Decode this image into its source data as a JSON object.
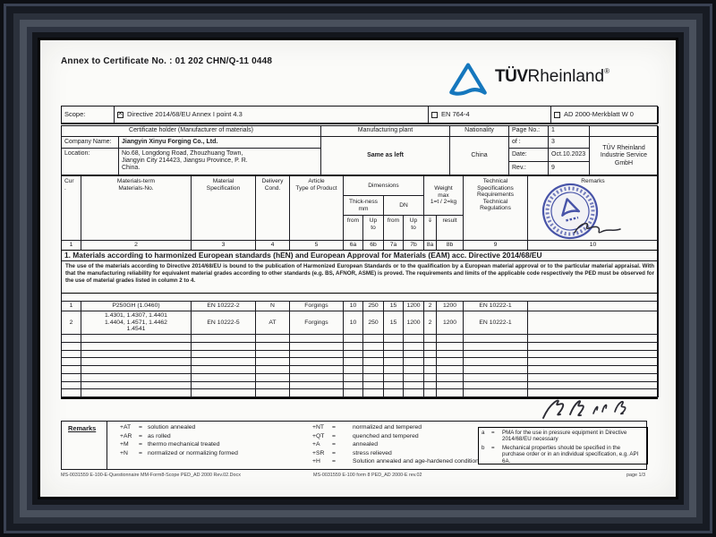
{
  "colors": {
    "tuv_blue": "#1577bd",
    "stamp_blue": "#4854a8",
    "paper": "#fbfbf9",
    "ink": "#1b1b1f"
  },
  "header": {
    "annex_title": "Annex to Certificate No. : 01 202 CHN/Q-11 0448",
    "logo": {
      "tuv": "TÜV",
      "rheinland": "Rheinland",
      "registered": "®"
    }
  },
  "scope": {
    "label": "Scope:",
    "options": [
      {
        "label": "Directive 2014/68/EU Annex I point 4.3",
        "checked": true
      },
      {
        "label": "EN 764-4",
        "checked": false
      },
      {
        "label": "AD 2000-Merkblatt W 0",
        "checked": false
      }
    ]
  },
  "certificate": {
    "holder_header": "Certificate holder (Manufacturer of materials)",
    "plant_header": "Manufacturing plant",
    "nationality_header": "Nationality",
    "company_label": "Company Name:",
    "company_name": "Jiangyin Xinyu Forging Co., Ltd.",
    "location_label": "Location:",
    "location": "No.68, Longdong Road, Zhouzhuang Town,\nJiangyin City 214423, Jiangsu Province, P. R.\nChina.",
    "plant_value": "Same as left",
    "nationality_value": "China",
    "page_label": "Page No.:",
    "page_value": "1",
    "of_label": "of :",
    "of_value": "3",
    "date_label": "Date:",
    "date_value": "Oct.10.2023",
    "rev_label": "Rev.:",
    "rev_value": "9",
    "org": "TÜV Rheinland\nIndustrie Service\nGmbH"
  },
  "table": {
    "columns": {
      "cur": "Cur\n.",
      "materials": "Materials-term\nMaterials-No.",
      "spec": "Material\nSpecification",
      "cond": "Delivery\nCond.",
      "article": "Article\nType of Product",
      "dimensions": "Dimensions",
      "thickness": "Thick-ness\nmm",
      "dn": "DN",
      "from1": "from",
      "upto1": "Up\nto",
      "from2": "from",
      "upto2": "Up\nto",
      "weight": "Weight\nmax\n1=t / 2=kg",
      "weight_sym": "⇓",
      "result": "result",
      "tech": "Technical\nSpecifications\nRequirements\nTechnical\nRegulations",
      "remarks": "Remarks"
    },
    "col_numbers": [
      "1",
      "2",
      "3",
      "4",
      "5",
      "6a",
      "6b",
      "7a",
      "7b",
      "8a",
      "8b",
      "9",
      "10"
    ],
    "section_title": "1. Materials according to harmonized European standards (hEN) and European Approval for Materials (EAM) acc. Directive 2014/68/EU",
    "section_note": "The use of the materials according to Directive 2014/68/EU is bound to the publication of Harmonized European Standards or to the qualification by a European material approval or to the particular material appraisal. With that the manufacturing reliability for equivalent material grades according to other standards (e.g. BS, AFNOR, ASME) is proved. The requirements and limits of the applicable code respectively the PED must be observed for the use of material grades listed in column 2 to 4.",
    "rows": [
      {
        "cur": "1",
        "materials": "P250GH (1.0460)",
        "spec": "EN 10222-2",
        "cond": "N",
        "article": "Forgings",
        "t_from": "10",
        "t_to": "250",
        "dn_from": "15",
        "dn_to": "1200",
        "w_unit": "2",
        "w_max": "1200",
        "tech": "EN 10222-1",
        "remarks": ""
      },
      {
        "cur": "2",
        "materials": "1.4301, 1.4307, 1.4401\n1.4404, 1.4571, 1.4462\n1.4541",
        "spec": "EN 10222-5",
        "cond": "AT",
        "article": "Forgings",
        "t_from": "10",
        "t_to": "250",
        "dn_from": "15",
        "dn_to": "1200",
        "w_unit": "2",
        "w_max": "1200",
        "tech": "EN 10222-1",
        "remarks": ""
      }
    ],
    "empty_rows": 8
  },
  "legend": {
    "title": "Remarks",
    "eq": "=",
    "left": [
      {
        "code": "+AT",
        "text": "solution annealed"
      },
      {
        "code": "+AR",
        "text": "as rolled"
      },
      {
        "code": "+M",
        "text": "thermo mechanical treated"
      },
      {
        "code": "+N",
        "text": "normalized or normalizing formed"
      }
    ],
    "mid": [
      {
        "code": "+NT",
        "text": "normalized and tempered"
      },
      {
        "code": "+QT",
        "text": "quenched and tempered"
      },
      {
        "code": "+A",
        "text": "annealed"
      },
      {
        "code": "+SR",
        "text": "stress relieved"
      },
      {
        "code": "+H",
        "text": "Solution annealed and age-hardened condition"
      }
    ],
    "notes": [
      {
        "code": "a",
        "text": "PMA for the use in pressure equipment in Directive 2014/68/EU necessary"
      },
      {
        "code": "b",
        "text": "Mechanical properties should be specified in the purchase order or in an individual specification, e.g. API 6A."
      }
    ]
  },
  "footer": {
    "left": "MS-0031559 E-100-E-Questionnaire MM-Form8-Scope PED_AD 2000 Rev.02.Docx",
    "center": "MS-0031559 E-100 form 8 PED_AD 2000-E rev.02",
    "right": "page 1/3"
  }
}
